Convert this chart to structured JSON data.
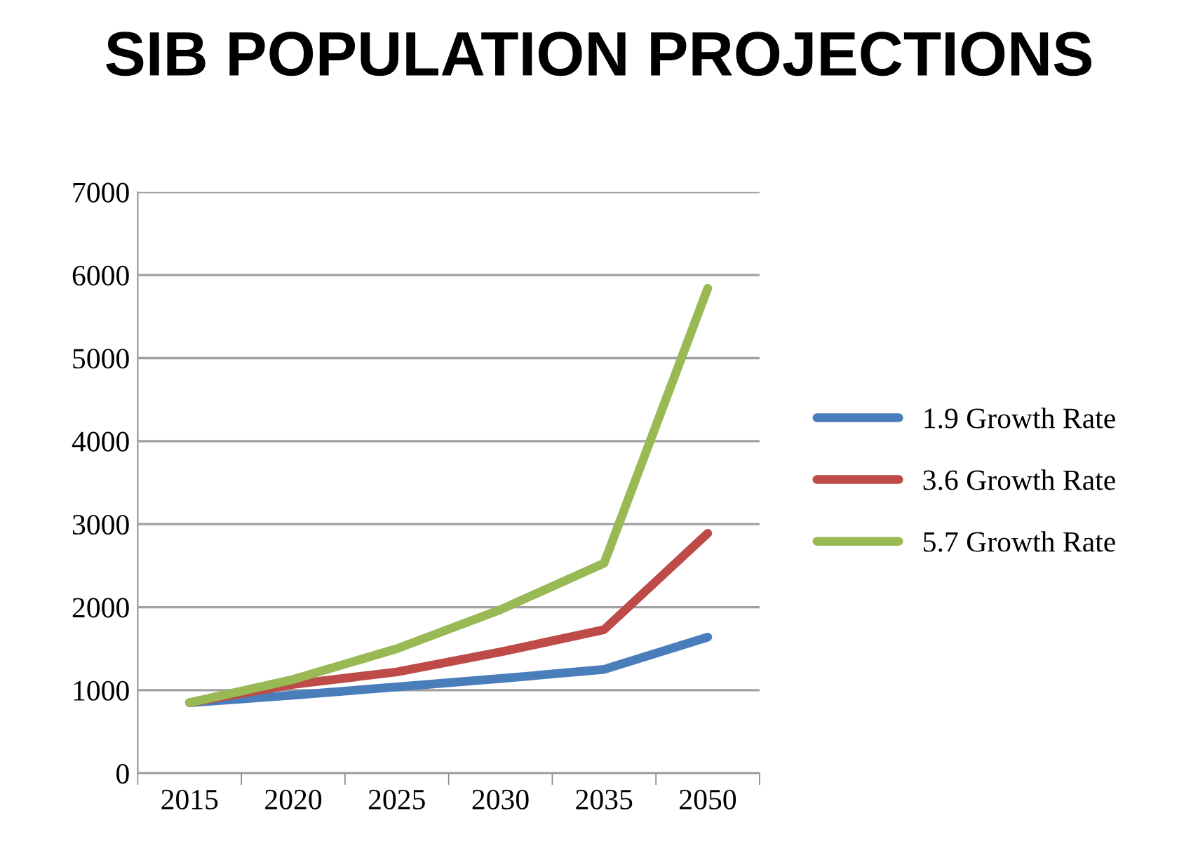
{
  "chart_data": {
    "type": "line",
    "title": "SIB POPULATION PROJECTIONS",
    "categories": [
      "2015",
      "2020",
      "2025",
      "2030",
      "2035",
      "2050"
    ],
    "series": [
      {
        "name": "1.9 Growth Rate",
        "color": "#4a7ebb",
        "values": [
          850,
          940,
          1040,
          1140,
          1250,
          1640
        ]
      },
      {
        "name": "3.6 Growth Rate",
        "color": "#be4b48",
        "values": [
          850,
          1070,
          1220,
          1460,
          1730,
          2890
        ]
      },
      {
        "name": "5.7 Growth Rate",
        "color": "#98b954",
        "values": [
          850,
          1130,
          1500,
          1970,
          2530,
          5840
        ]
      }
    ],
    "ylim": [
      0,
      7000
    ],
    "yticks": [
      0,
      1000,
      2000,
      3000,
      4000,
      5000,
      6000,
      7000
    ],
    "grid": "y",
    "legend": "right",
    "marker": "none",
    "line_style": "solid"
  }
}
